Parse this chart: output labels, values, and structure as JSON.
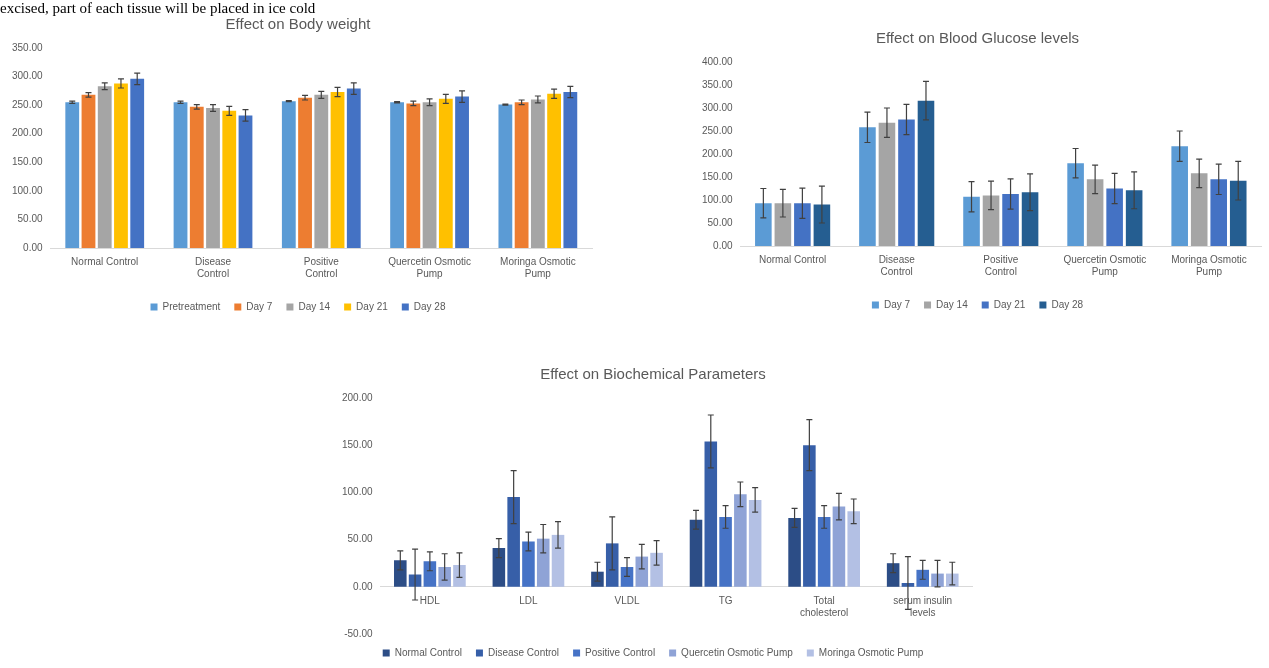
{
  "chart_data": [
    {
      "type": "bar",
      "title": "Effect on Body weight",
      "annotations": [
        "excised, part of each tissue will be placed in ice cold"
      ],
      "categories": [
        "Normal Control",
        "Disease Control",
        "Positive Control",
        "Quercetin Osmotic Pump",
        "Moringa Osmotic Pump"
      ],
      "ylim": [
        0,
        350
      ],
      "yticks": [
        {
          "value": 0,
          "label": "0.00"
        },
        {
          "value": 50,
          "label": "50.00"
        },
        {
          "value": 100,
          "label": "100.00"
        },
        {
          "value": 150,
          "label": "150.00"
        },
        {
          "value": 200,
          "label": "200.00"
        },
        {
          "value": 250,
          "label": "250.00"
        },
        {
          "value": 300,
          "label": "300.00"
        },
        {
          "value": 350,
          "label": "350.00"
        }
      ],
      "grid": false,
      "legend": "bottom",
      "series": [
        {
          "name": "Pretreatment",
          "color": "#5b9bd5",
          "values": [
            255,
            255,
            257,
            255,
            251
          ],
          "errors": [
            2,
            2,
            1,
            1,
            1
          ]
        },
        {
          "name": "Day 7",
          "color": "#ed7d31",
          "values": [
            268,
            247,
            263,
            253,
            255
          ],
          "errors": [
            4,
            4,
            4,
            4,
            4
          ]
        },
        {
          "name": "Day 14",
          "color": "#a5a5a5",
          "values": [
            283,
            245,
            268,
            255,
            260
          ],
          "errors": [
            6,
            6,
            6,
            6,
            6
          ]
        },
        {
          "name": "Day 21",
          "color": "#ffc000",
          "values": [
            288,
            240,
            273,
            261,
            270
          ],
          "errors": [
            8,
            8,
            8,
            8,
            8
          ]
        },
        {
          "name": "Day 28",
          "color": "#4472c4",
          "values": [
            296,
            232,
            279,
            265,
            273
          ],
          "errors": [
            10,
            10,
            10,
            10,
            10
          ]
        }
      ]
    },
    {
      "type": "bar",
      "title": "Effect on Blood Glucose levels",
      "categories": [
        "Normal Control",
        "Disease Control",
        "Positive Control",
        "Quercetin Osmotic Pump",
        "Moringa Osmotic Pump"
      ],
      "ylim": [
        0,
        400
      ],
      "yticks": [
        {
          "value": 0,
          "label": "0.00"
        },
        {
          "value": 50,
          "label": "50.00"
        },
        {
          "value": 100,
          "label": "100.00"
        },
        {
          "value": 150,
          "label": "150.00"
        },
        {
          "value": 200,
          "label": "200.00"
        },
        {
          "value": 250,
          "label": "250.00"
        },
        {
          "value": 300,
          "label": "300.00"
        },
        {
          "value": 350,
          "label": "350.00"
        },
        {
          "value": 400,
          "label": "400.00"
        }
      ],
      "grid": false,
      "legend": "bottom",
      "series": [
        {
          "name": "Day 7",
          "color": "#5b9bd5",
          "values": [
            93,
            258,
            107,
            180,
            217
          ],
          "errors": [
            32,
            33,
            33,
            32,
            33
          ]
        },
        {
          "name": "Day 14",
          "color": "#a5a5a5",
          "values": [
            93,
            268,
            110,
            145,
            158
          ],
          "errors": [
            30,
            32,
            31,
            31,
            31
          ]
        },
        {
          "name": "Day 21",
          "color": "#4472c4",
          "values": [
            93,
            275,
            113,
            125,
            145
          ],
          "errors": [
            33,
            33,
            33,
            33,
            33
          ]
        },
        {
          "name": "Day 28",
          "color": "#255e91",
          "values": [
            90,
            316,
            117,
            121,
            142
          ],
          "errors": [
            40,
            42,
            40,
            40,
            42
          ]
        }
      ]
    },
    {
      "type": "bar",
      "title": "Effect on Biochemical Parameters",
      "categories": [
        "HDL",
        "LDL",
        "VLDL",
        "TG",
        "Total cholesterol",
        "serum insulin levels"
      ],
      "ylim": [
        -50,
        200
      ],
      "yticks": [
        {
          "value": -50,
          "label": "-50.00"
        },
        {
          "value": 0,
          "label": "0.00"
        },
        {
          "value": 50,
          "label": "50.00"
        },
        {
          "value": 100,
          "label": "100.00"
        },
        {
          "value": 150,
          "label": "150.00"
        },
        {
          "value": 200,
          "label": "200.00"
        }
      ],
      "grid": false,
      "legend": "bottom",
      "series": [
        {
          "name": "Normal Control",
          "color": "#2c4d86",
          "values": [
            28,
            41,
            16,
            71,
            73,
            25
          ],
          "errors": [
            10,
            10,
            10,
            10,
            10,
            10
          ]
        },
        {
          "name": "Disease Control",
          "color": "#375fa8",
          "values": [
            13,
            95,
            46,
            154,
            150,
            4
          ],
          "errors": [
            27,
            28,
            28,
            28,
            27,
            28
          ]
        },
        {
          "name": "Positive Control",
          "color": "#4673c6",
          "values": [
            27,
            48,
            21,
            74,
            74,
            18
          ],
          "errors": [
            10,
            10,
            10,
            12,
            12,
            10
          ]
        },
        {
          "name": "Quercetin Osmotic Pump",
          "color": "#8fa3d6",
          "values": [
            21,
            51,
            32,
            98,
            85,
            14
          ],
          "errors": [
            14,
            15,
            13,
            13,
            14,
            14
          ]
        },
        {
          "name": "Moringa Osmotic Pump",
          "color": "#b3c0e4",
          "values": [
            23,
            55,
            36,
            92,
            80,
            14
          ],
          "errors": [
            13,
            14,
            13,
            13,
            13,
            12
          ]
        }
      ]
    }
  ]
}
